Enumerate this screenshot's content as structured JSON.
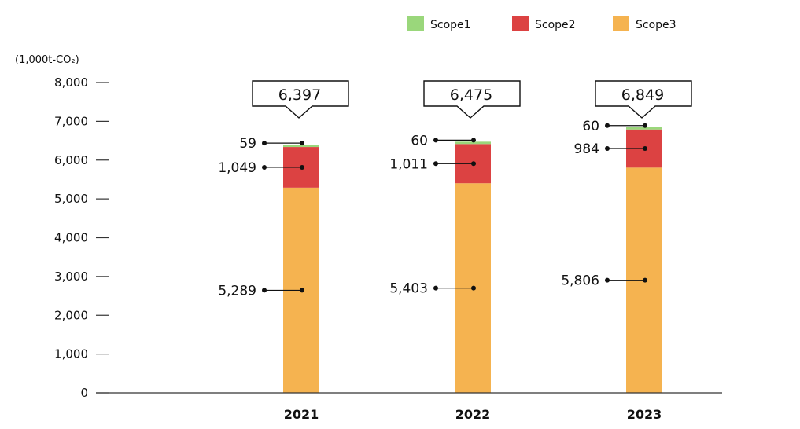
{
  "chart_data": {
    "type": "bar",
    "stacked": true,
    "unit_label": "(1,000t-CO₂)",
    "categories": [
      "2021",
      "2022",
      "2023"
    ],
    "series": [
      {
        "name": "Scope1",
        "color": "#9ad77b",
        "values": [
          59,
          60,
          60
        ]
      },
      {
        "name": "Scope2",
        "color": "#dc4242",
        "values": [
          1049,
          1011,
          984
        ]
      },
      {
        "name": "Scope3",
        "color": "#f5b350",
        "values": [
          5289,
          5403,
          5806
        ]
      }
    ],
    "totals": [
      6397,
      6475,
      6849
    ],
    "yticks": [
      0,
      1000,
      2000,
      3000,
      4000,
      5000,
      6000,
      7000,
      8000
    ],
    "ylim": [
      0,
      8000
    ],
    "legend_position": "top-right",
    "grid": false
  }
}
